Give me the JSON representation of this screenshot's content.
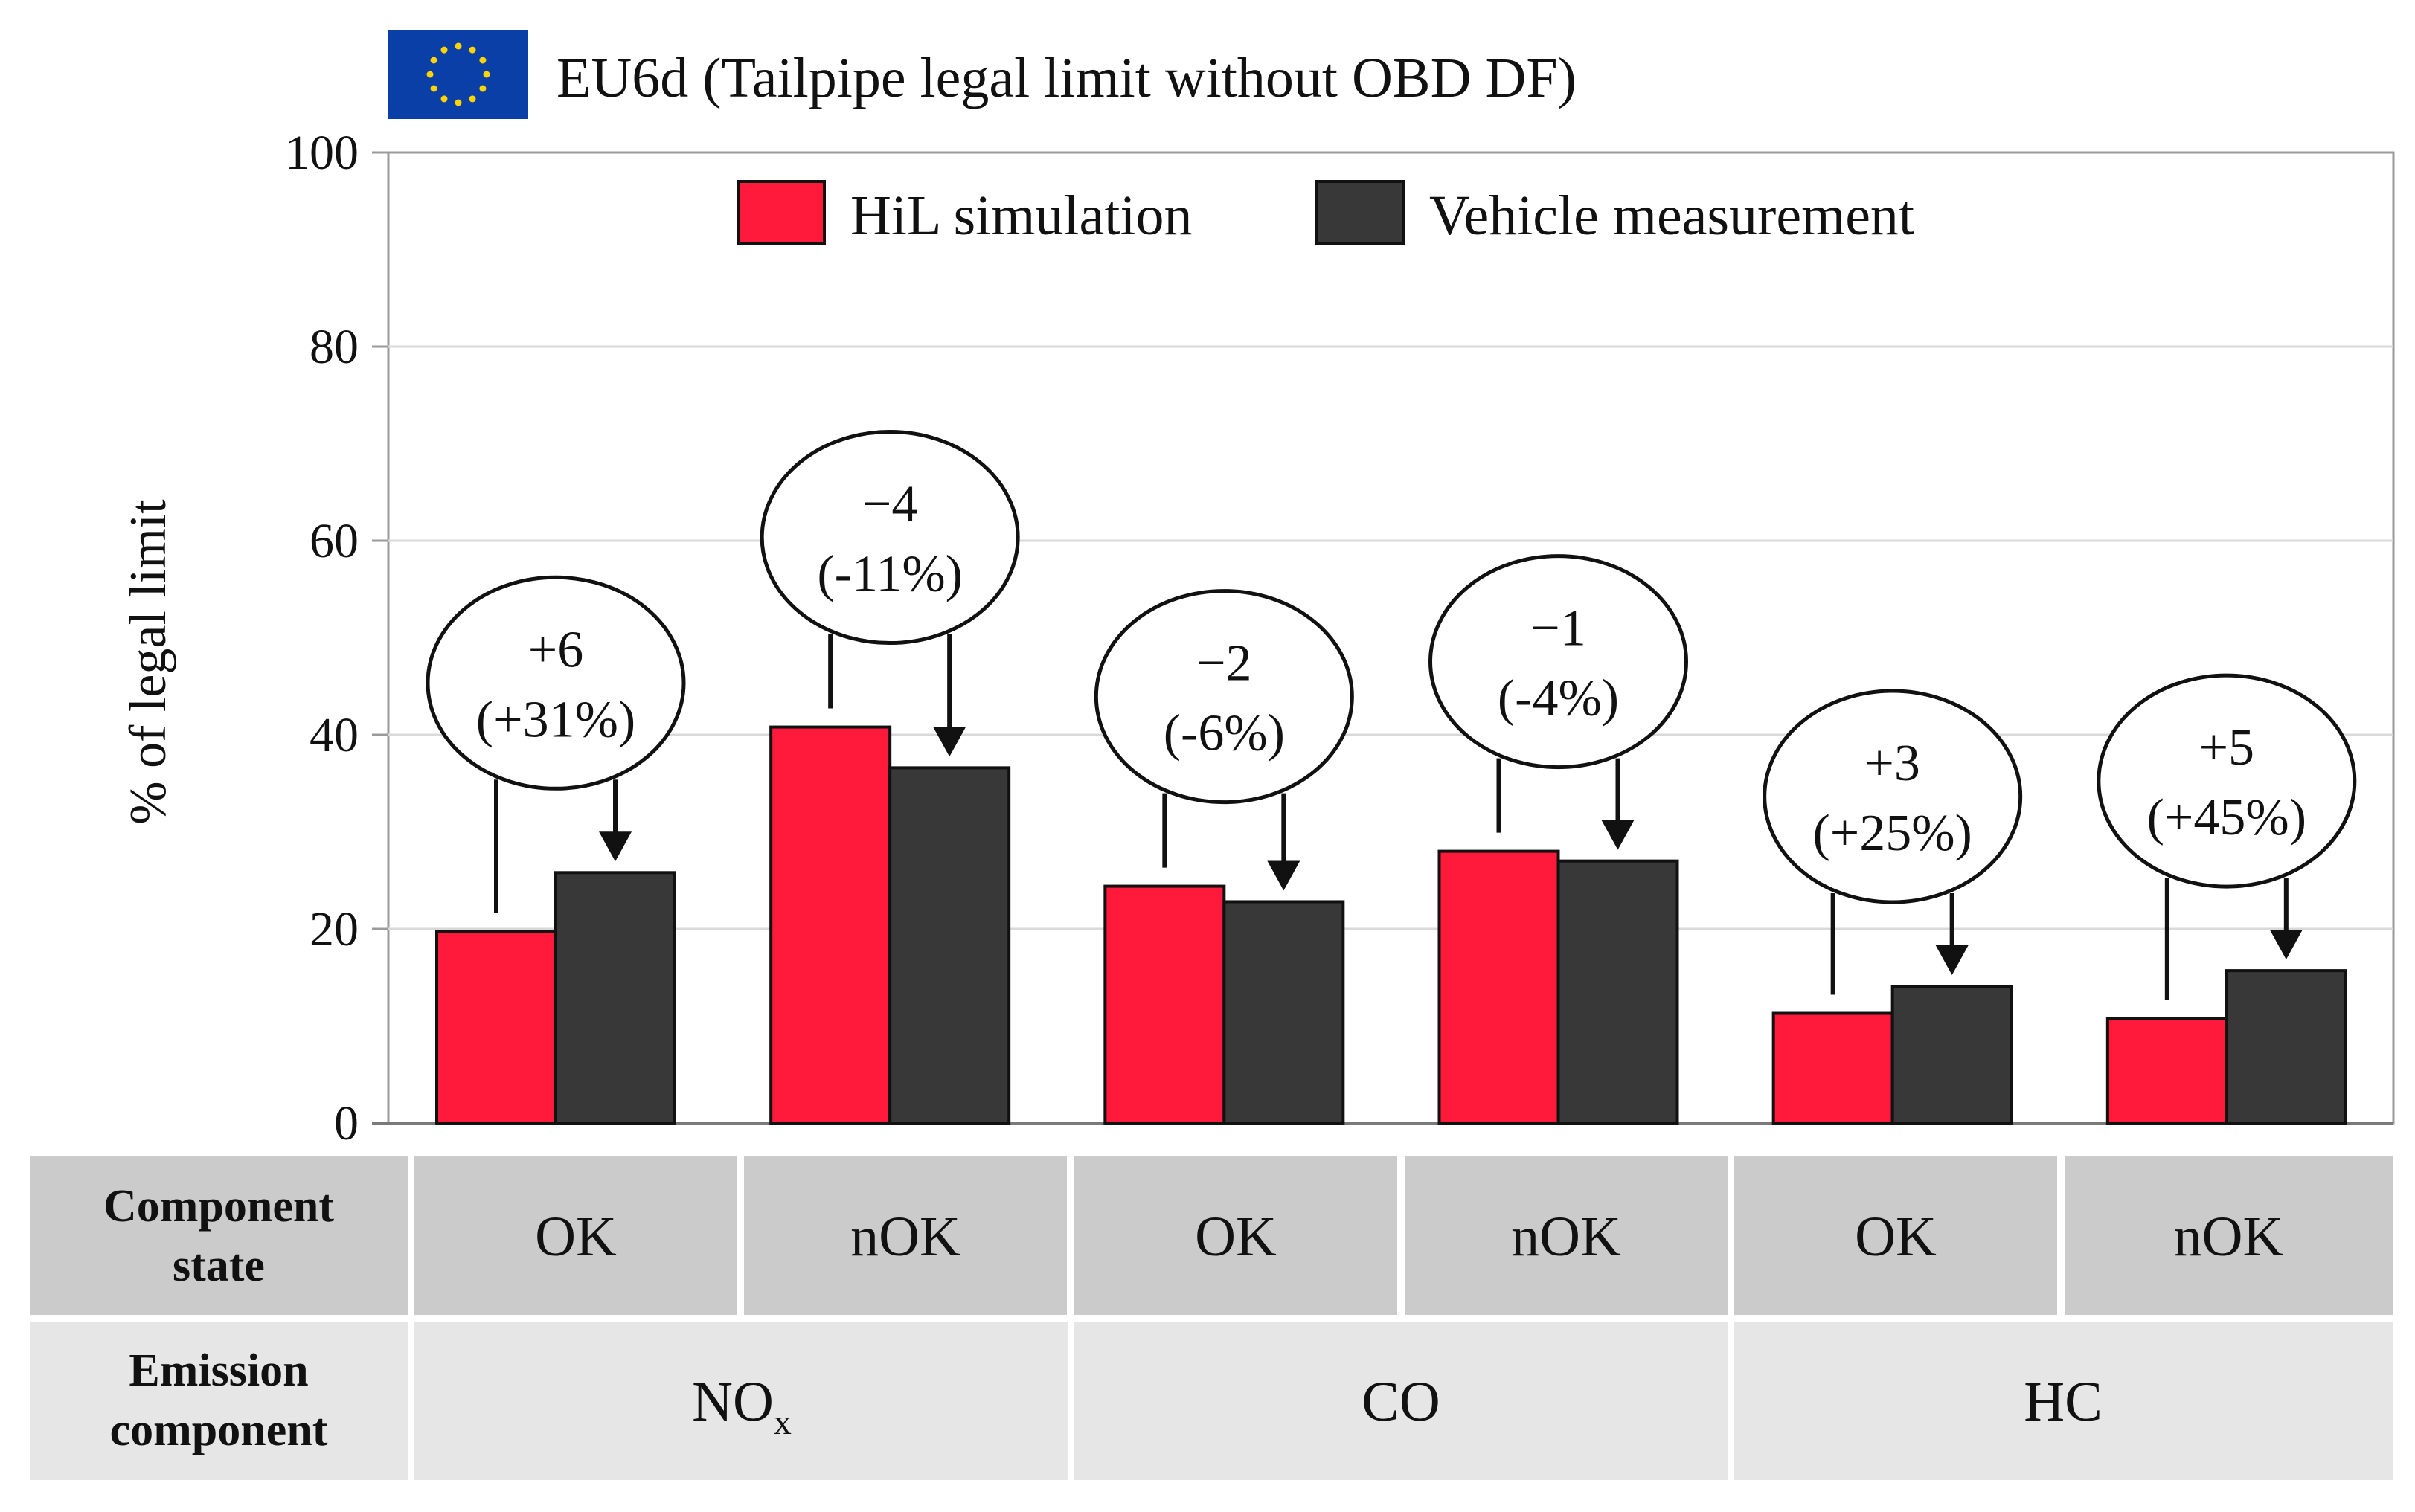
{
  "title": "EU6d (Tailpipe legal limit without OBD DF)",
  "flag_icon": "eu-flag-icon",
  "chart_data": {
    "type": "bar",
    "title": "EU6d (Tailpipe legal limit without OBD DF)",
    "ylabel": "% of legal limit",
    "xlabel": "",
    "ylim": [
      0,
      100
    ],
    "yticks": [
      0,
      20,
      40,
      60,
      80,
      100
    ],
    "legend_position": "top",
    "grid": true,
    "categories": [
      "NOx OK",
      "NOx nOK",
      "CO OK",
      "CO nOK",
      "HC OK",
      "HC nOK"
    ],
    "series": [
      {
        "name": "HiL simulation",
        "color": "#FF1A3C",
        "values": [
          19.7,
          40.8,
          24.4,
          28.0,
          11.3,
          10.8
        ]
      },
      {
        "name": "Vehicle measurement",
        "color": "#383838",
        "values": [
          25.8,
          36.6,
          22.8,
          27.0,
          14.1,
          15.7
        ]
      }
    ],
    "annotations": [
      {
        "line1": "+6",
        "line2": "(+31%)"
      },
      {
        "line1": "−4",
        "line2": "(-11%)"
      },
      {
        "line1": "−2",
        "line2": "(-6%)"
      },
      {
        "line1": "−1",
        "line2": "(-4%)"
      },
      {
        "line1": "+3",
        "line2": "(+25%)"
      },
      {
        "line1": "+5",
        "line2": "(+45%)"
      }
    ]
  },
  "table": {
    "row1_header_line1": "Component",
    "row1_header_line2": "state",
    "row2_header_line1": "Emission",
    "row2_header_line2": "component",
    "states": [
      "OK",
      "nOK",
      "OK",
      "nOK",
      "OK",
      "nOK"
    ],
    "components": [
      {
        "main": "NO",
        "sub": "x"
      },
      {
        "main": "CO",
        "sub": ""
      },
      {
        "main": "HC",
        "sub": ""
      }
    ],
    "colors": {
      "row1": "#CBCBCB",
      "row2": "#E6E6E6"
    }
  }
}
